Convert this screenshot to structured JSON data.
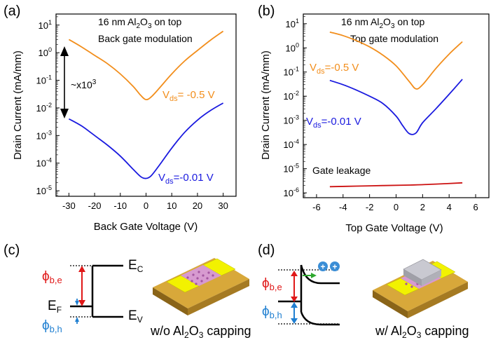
{
  "chart_data": [
    {
      "type": "line",
      "panel_label": "(a)",
      "title_line1": "16 nm Al",
      "title_sub": "2",
      "title_mid": "O",
      "title_sub2": "3",
      "title_end": " on top",
      "title_line2": "Back gate modulation",
      "xlabel": "Back Gate Voltage (V)",
      "ylabel": "Drain Current (mA/mm)",
      "xlim": [
        -35,
        35
      ],
      "ylog_range": [
        -5.2,
        1.4
      ],
      "xticks": [
        -30,
        -20,
        -10,
        0,
        10,
        20,
        30
      ],
      "ytick_exps": [
        1,
        0,
        -1,
        -2,
        -3,
        -4,
        -5
      ],
      "annotation": "~x10",
      "annotation_sup": "3",
      "series": [
        {
          "label_main": "V",
          "label_sub": "ds",
          "label_val": "= -0.5 V",
          "color": "#f28e1c",
          "x": [
            -30,
            -25,
            -20,
            -15,
            -10,
            -5,
            -2,
            0,
            2,
            5,
            10,
            15,
            20,
            25,
            30
          ],
          "y": [
            3.0,
            1.6,
            0.8,
            0.4,
            0.17,
            0.06,
            0.028,
            0.02,
            0.025,
            0.05,
            0.17,
            0.5,
            1.2,
            2.8,
            6.0
          ]
        },
        {
          "label_main": "V",
          "label_sub": "ds",
          "label_val": "=-0.01 V",
          "color": "#1a1adf",
          "x": [
            -30,
            -25,
            -20,
            -15,
            -10,
            -5,
            -2,
            0,
            2,
            5,
            10,
            15,
            20,
            25,
            30
          ],
          "y": [
            0.004,
            0.0022,
            0.001,
            0.00045,
            0.00018,
            6e-05,
            3.2e-05,
            2.8e-05,
            3.5e-05,
            8e-05,
            0.00035,
            0.0013,
            0.0036,
            0.008,
            0.015
          ]
        }
      ]
    },
    {
      "type": "line",
      "panel_label": "(b)",
      "title_line1": "16 nm Al",
      "title_sub": "2",
      "title_mid": "O",
      "title_sub2": "3",
      "title_end": " on top",
      "title_line2": "Top gate modulation",
      "xlabel": "Top Gate Voltage (V)",
      "ylabel": "Drain Current (mA/mm)",
      "xlim": [
        -7,
        7
      ],
      "ylog_range": [
        -6.2,
        1.4
      ],
      "xticks": [
        -6,
        -4,
        -2,
        0,
        2,
        4,
        6
      ],
      "ytick_exps": [
        1,
        0,
        -1,
        -2,
        -3,
        -4,
        -5,
        -6
      ],
      "leakage_label": "Gate leakage",
      "series": [
        {
          "label_main": "V",
          "label_sub": "ds",
          "label_val": "=-0.5 V",
          "color": "#f28e1c",
          "x": [
            -5,
            -4,
            -3,
            -2,
            -1,
            0,
            1,
            1.5,
            2,
            3,
            4,
            5
          ],
          "y": [
            4.5,
            3.2,
            2.0,
            1.1,
            0.5,
            0.18,
            0.04,
            0.02,
            0.03,
            0.14,
            0.55,
            1.8
          ]
        },
        {
          "label_main": "V",
          "label_sub": "ds",
          "label_val": "=-0.01 V",
          "color": "#1a1adf",
          "x": [
            -5,
            -4,
            -3,
            -2,
            -1,
            0,
            0.5,
            1,
            1.5,
            2,
            3,
            4,
            5
          ],
          "y": [
            0.045,
            0.03,
            0.018,
            0.01,
            0.005,
            0.0015,
            0.0006,
            0.00028,
            0.0003,
            0.0008,
            0.003,
            0.012,
            0.05
          ]
        },
        {
          "label_main": "",
          "label_sub": "",
          "label_val": "",
          "color": "#cc1111",
          "x": [
            -5,
            -3,
            -1,
            1,
            3,
            5
          ],
          "y": [
            1.8e-06,
            1.9e-06,
            2e-06,
            2.1e-06,
            2.3e-06,
            2.6e-06
          ]
        }
      ]
    }
  ],
  "diagram_c": {
    "panel_label": "(c)",
    "ec_main": "E",
    "ec_sub": "C",
    "ev_main": "E",
    "ev_sub": "V",
    "ef_main": "E",
    "ef_sub": "F",
    "phi_be_main": "ϕ",
    "phi_be_sub": "b,e",
    "phi_bh_main": "ϕ",
    "phi_bh_sub": "b,h",
    "caption_pre": "w/o Al",
    "caption_sub": "2",
    "caption_mid": "O",
    "caption_sub2": "3",
    "caption_end": " capping"
  },
  "diagram_d": {
    "panel_label": "(d)",
    "phi_be_main": "ϕ",
    "phi_be_sub": "b,e",
    "phi_bh_main": "ϕ",
    "phi_bh_sub": "b,h",
    "caption_pre": "w/ Al",
    "caption_sub": "2",
    "caption_mid": "O",
    "caption_sub2": "3",
    "caption_end": " capping"
  },
  "colors": {
    "orange": "#f28e1c",
    "blue": "#1a1adf",
    "red": "#e01818",
    "phi_blue": "#1f7fd1",
    "gold": "#c9951f",
    "yellow": "#f2f200",
    "pink": "#d79ad0",
    "gray": "#bfbfc6"
  }
}
